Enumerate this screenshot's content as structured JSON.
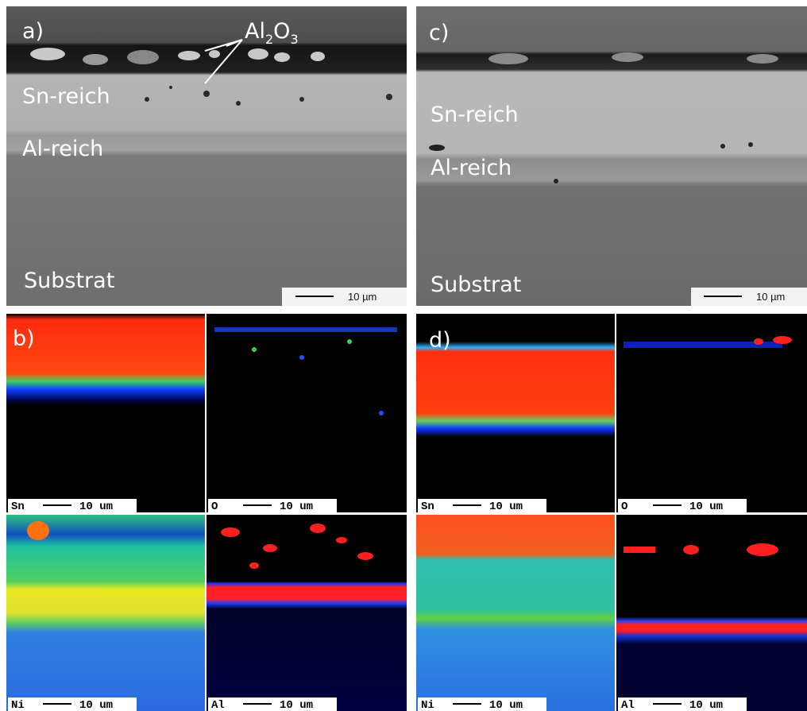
{
  "panels": [
    {
      "label": "a)",
      "oxide": [
        "Al",
        "2",
        "O",
        "3"
      ],
      "regions": [
        "Sn-reich",
        "Al-reich",
        "Substrat"
      ],
      "scale_bar": "10 µm"
    },
    {
      "label": "c)",
      "regions": [
        "Sn-reich",
        "Al-reich",
        "Substrat"
      ],
      "scale_bar": "10 µm"
    }
  ],
  "maps": [
    {
      "label": "b)",
      "tiles": [
        {
          "element": "Sn",
          "scale": "10 um"
        },
        {
          "element": "O",
          "scale": "10 um"
        },
        {
          "element": "Ni",
          "scale": "10 um"
        },
        {
          "element": "Al",
          "scale": "10 um"
        }
      ]
    },
    {
      "label": "d)",
      "tiles": [
        {
          "element": "Sn",
          "scale": "10 um"
        },
        {
          "element": "O",
          "scale": "10 um"
        },
        {
          "element": "Ni",
          "scale": "10 um"
        },
        {
          "element": "Al",
          "scale": "10 um"
        }
      ]
    }
  ]
}
